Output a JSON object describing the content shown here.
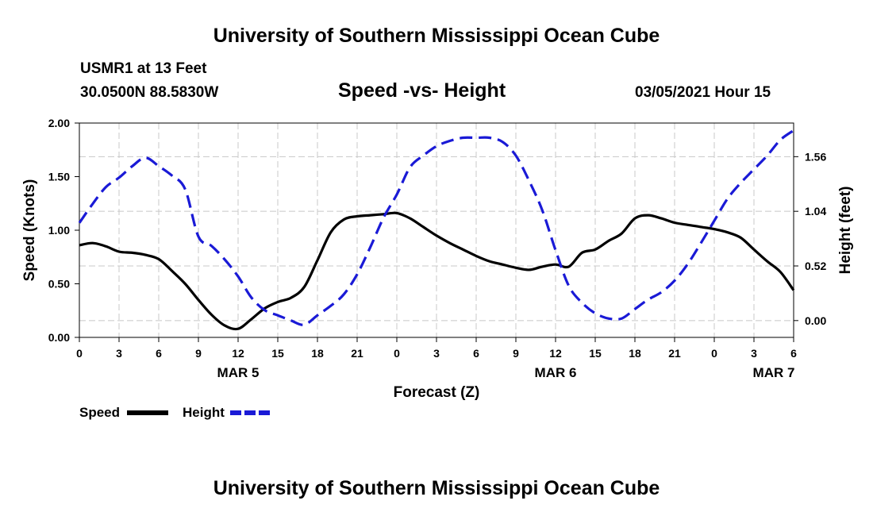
{
  "page": {
    "title_top": "University of Southern Mississippi Ocean Cube",
    "title_bottom": "University of Southern Mississippi Ocean Cube",
    "station": "USMR1 at 13 Feet",
    "coords": "30.0500N 88.5830W",
    "subtitle": "Speed -vs- Height",
    "datetime": "03/05/2021 Hour 15"
  },
  "colors": {
    "speed": "#000000",
    "height": "#1a1ad6",
    "grid": "#c8c8c8"
  },
  "chart_data": {
    "type": "line",
    "xlabel": "Forecast (Z)",
    "ylabel_left": "Speed (Knots)",
    "ylabel_right": "Height (feet)",
    "x_range_hours": [
      0,
      54
    ],
    "ylim_left": [
      0,
      2.0
    ],
    "ylim_right": [
      -0.16,
      1.88
    ],
    "x_ticks": [
      {
        "x": 0,
        "label": "0"
      },
      {
        "x": 3,
        "label": "3"
      },
      {
        "x": 6,
        "label": "6"
      },
      {
        "x": 9,
        "label": "9"
      },
      {
        "x": 12,
        "label": "12"
      },
      {
        "x": 15,
        "label": "15"
      },
      {
        "x": 18,
        "label": "18"
      },
      {
        "x": 21,
        "label": "21"
      },
      {
        "x": 24,
        "label": "0"
      },
      {
        "x": 27,
        "label": "3"
      },
      {
        "x": 30,
        "label": "6"
      },
      {
        "x": 33,
        "label": "9"
      },
      {
        "x": 36,
        "label": "12"
      },
      {
        "x": 39,
        "label": "15"
      },
      {
        "x": 42,
        "label": "18"
      },
      {
        "x": 45,
        "label": "21"
      },
      {
        "x": 48,
        "label": "0"
      },
      {
        "x": 51,
        "label": "3"
      },
      {
        "x": 54,
        "label": "6"
      }
    ],
    "date_labels": [
      {
        "x": 12,
        "label": "MAR 5"
      },
      {
        "x": 36,
        "label": "MAR 6"
      },
      {
        "x": 52.5,
        "label": "MAR 7"
      }
    ],
    "y_ticks_left": [
      {
        "v": 0.0,
        "label": "0.00"
      },
      {
        "v": 0.5,
        "label": "0.50"
      },
      {
        "v": 1.0,
        "label": "1.00"
      },
      {
        "v": 1.5,
        "label": "1.50"
      },
      {
        "v": 2.0,
        "label": "2.00"
      }
    ],
    "y_ticks_right": [
      {
        "v": 0.0,
        "label": "0.00"
      },
      {
        "v": 0.52,
        "label": "0.52"
      },
      {
        "v": 1.04,
        "label": "1.04"
      },
      {
        "v": 1.56,
        "label": "1.56"
      }
    ],
    "legend": [
      {
        "name": "Speed",
        "style": "solid"
      },
      {
        "name": "Height",
        "style": "dashed"
      }
    ],
    "series": [
      {
        "name": "Speed",
        "axis": "left",
        "style": "solid",
        "x": [
          0,
          1,
          2,
          3,
          4,
          5,
          6,
          7,
          8,
          9,
          10,
          11,
          12,
          13,
          14,
          15,
          16,
          17,
          18,
          19,
          20,
          21,
          22,
          23,
          24,
          25,
          26,
          27,
          28,
          29,
          30,
          31,
          32,
          33,
          34,
          35,
          36,
          37,
          38,
          39,
          40,
          41,
          42,
          43,
          44,
          45,
          46,
          47,
          48,
          49,
          50,
          51,
          52,
          53,
          54
        ],
        "values": [
          0.86,
          0.88,
          0.85,
          0.8,
          0.79,
          0.77,
          0.73,
          0.62,
          0.5,
          0.35,
          0.21,
          0.11,
          0.08,
          0.17,
          0.27,
          0.33,
          0.37,
          0.47,
          0.72,
          0.98,
          1.1,
          1.13,
          1.14,
          1.15,
          1.16,
          1.11,
          1.03,
          0.95,
          0.88,
          0.82,
          0.76,
          0.71,
          0.68,
          0.65,
          0.63,
          0.66,
          0.68,
          0.66,
          0.79,
          0.82,
          0.9,
          0.97,
          1.11,
          1.14,
          1.11,
          1.07,
          1.05,
          1.03,
          1.01,
          0.98,
          0.93,
          0.82,
          0.71,
          0.61,
          0.44
        ]
      },
      {
        "name": "Height",
        "axis": "right",
        "style": "dashed",
        "x": [
          0,
          1,
          2,
          3,
          4,
          5,
          6,
          7,
          8,
          9,
          10,
          11,
          12,
          13,
          14,
          15,
          16,
          17,
          18,
          19,
          20,
          21,
          22,
          23,
          24,
          25,
          26,
          27,
          28,
          29,
          30,
          31,
          32,
          33,
          34,
          35,
          36,
          37,
          38,
          39,
          40,
          41,
          42,
          43,
          44,
          45,
          46,
          47,
          48,
          49,
          50,
          51,
          52,
          53,
          54
        ],
        "values": [
          0.93,
          1.11,
          1.27,
          1.36,
          1.47,
          1.55,
          1.47,
          1.38,
          1.25,
          0.8,
          0.71,
          0.58,
          0.42,
          0.22,
          0.1,
          0.05,
          0.0,
          -0.04,
          0.05,
          0.14,
          0.25,
          0.44,
          0.7,
          0.98,
          1.2,
          1.46,
          1.57,
          1.66,
          1.71,
          1.74,
          1.74,
          1.74,
          1.7,
          1.57,
          1.33,
          1.05,
          0.67,
          0.33,
          0.17,
          0.07,
          0.02,
          0.02,
          0.11,
          0.2,
          0.27,
          0.38,
          0.54,
          0.74,
          0.95,
          1.16,
          1.31,
          1.44,
          1.57,
          1.72,
          1.81
        ]
      }
    ]
  }
}
